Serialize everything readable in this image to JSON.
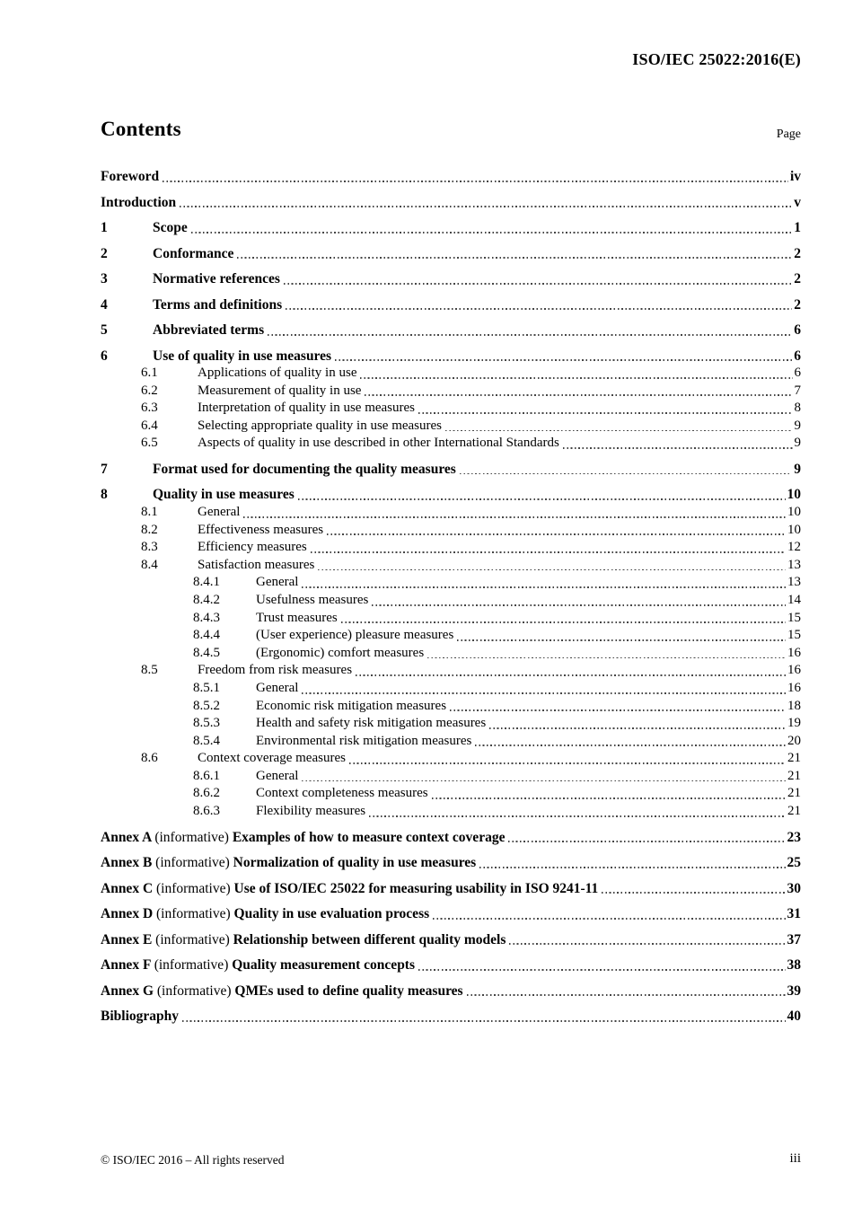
{
  "header": {
    "doc_ref": "ISO/IEC 25022:2016(E)"
  },
  "contents": {
    "title": "Contents",
    "page_column_label": "Page"
  },
  "colors": {
    "text": "#000000",
    "leader_dots": "#454545",
    "background": "#ffffff"
  },
  "toc_entries": [
    {
      "level": 1,
      "num": "",
      "label": "Foreword",
      "page": "iv"
    },
    {
      "level": 1,
      "num": "",
      "label": "Introduction",
      "page": "v"
    },
    {
      "level": 1,
      "num": "1",
      "label": "Scope",
      "page": "1"
    },
    {
      "level": 1,
      "num": "2",
      "label": "Conformance",
      "page": "2"
    },
    {
      "level": 1,
      "num": "3",
      "label": "Normative references",
      "page": "2"
    },
    {
      "level": 1,
      "num": "4",
      "label": "Terms and definitions",
      "page": "2"
    },
    {
      "level": 1,
      "num": "5",
      "label": "Abbreviated terms",
      "page": "6"
    },
    {
      "level": 1,
      "num": "6",
      "label": "Use of quality in use measures",
      "page": "6"
    },
    {
      "level": 2,
      "num": "6.1",
      "label": "Applications of quality in use",
      "page": "6"
    },
    {
      "level": 2,
      "num": "6.2",
      "label": "Measurement of quality in use",
      "page": "7"
    },
    {
      "level": 2,
      "num": "6.3",
      "label": "Interpretation of quality in use measures",
      "page": "8"
    },
    {
      "level": 2,
      "num": "6.4",
      "label": "Selecting appropriate quality in use measures",
      "page": "9"
    },
    {
      "level": 2,
      "num": "6.5",
      "label": "Aspects of quality in use described in other International Standards",
      "page": "9"
    },
    {
      "level": 1,
      "num": "7",
      "label": "Format used for documenting the quality measures",
      "page": "9"
    },
    {
      "level": 1,
      "num": "8",
      "label": "Quality in use measures",
      "page": "10"
    },
    {
      "level": 2,
      "num": "8.1",
      "label": "General",
      "page": "10"
    },
    {
      "level": 2,
      "num": "8.2",
      "label": "Effectiveness measures",
      "page": "10"
    },
    {
      "level": 2,
      "num": "8.3",
      "label": "Efficiency measures",
      "page": "12"
    },
    {
      "level": 2,
      "num": "8.4",
      "label": "Satisfaction measures",
      "page": "13"
    },
    {
      "level": 3,
      "num": "8.4.1",
      "label": "General",
      "page": "13"
    },
    {
      "level": 3,
      "num": "8.4.2",
      "label": "Usefulness measures",
      "page": "14"
    },
    {
      "level": 3,
      "num": "8.4.3",
      "label": "Trust measures",
      "page": "15"
    },
    {
      "level": 3,
      "num": "8.4.4",
      "label": "(User experience) pleasure measures",
      "page": "15"
    },
    {
      "level": 3,
      "num": "8.4.5",
      "label": "(Ergonomic) comfort measures",
      "page": "16"
    },
    {
      "level": 2,
      "num": "8.5",
      "label": "Freedom from risk measures",
      "page": "16"
    },
    {
      "level": 3,
      "num": "8.5.1",
      "label": "General",
      "page": "16"
    },
    {
      "level": 3,
      "num": "8.5.2",
      "label": "Economic risk mitigation measures",
      "page": "18"
    },
    {
      "level": 3,
      "num": "8.5.3",
      "label": "Health and safety risk mitigation measures",
      "page": "19"
    },
    {
      "level": 3,
      "num": "8.5.4",
      "label": "Environmental risk mitigation measures",
      "page": "20"
    },
    {
      "level": 2,
      "num": "8.6",
      "label": "Context coverage measures",
      "page": "21"
    },
    {
      "level": 3,
      "num": "8.6.1",
      "label": "General",
      "page": "21"
    },
    {
      "level": 3,
      "num": "8.6.2",
      "label": "Context completeness measures",
      "page": "21"
    },
    {
      "level": 3,
      "num": "8.6.3",
      "label": "Flexibility measures",
      "page": "21"
    },
    {
      "level": 1,
      "num": "",
      "annex": "Annex A",
      "qualifier": "(informative)",
      "label": "Examples of how to measure context coverage",
      "page": "23"
    },
    {
      "level": 1,
      "num": "",
      "annex": "Annex B",
      "qualifier": "(informative)",
      "label": "Normalization of quality in use measures",
      "page": "25"
    },
    {
      "level": 1,
      "num": "",
      "annex": "Annex C",
      "qualifier": "(informative)",
      "label": "Use of ISO/IEC 25022 for measuring usability in ISO 9241-11",
      "page": "30"
    },
    {
      "level": 1,
      "num": "",
      "annex": "Annex D",
      "qualifier": "(informative)",
      "label": "Quality in use evaluation process",
      "page": "31"
    },
    {
      "level": 1,
      "num": "",
      "annex": "Annex E",
      "qualifier": "(informative)",
      "label": "Relationship between different quality models",
      "page": "37"
    },
    {
      "level": 1,
      "num": "",
      "annex": "Annex F",
      "qualifier": "(informative)",
      "label": "Quality measurement concepts",
      "page": "38"
    },
    {
      "level": 1,
      "num": "",
      "annex": "Annex G",
      "qualifier": "(informative)",
      "label": "QMEs used to define quality measures",
      "page": "39"
    },
    {
      "level": 1,
      "num": "",
      "label": "Bibliography",
      "page": "40"
    }
  ],
  "footer": {
    "copyright": "© ISO/IEC 2016 – All rights reserved",
    "page_number": "iii"
  }
}
